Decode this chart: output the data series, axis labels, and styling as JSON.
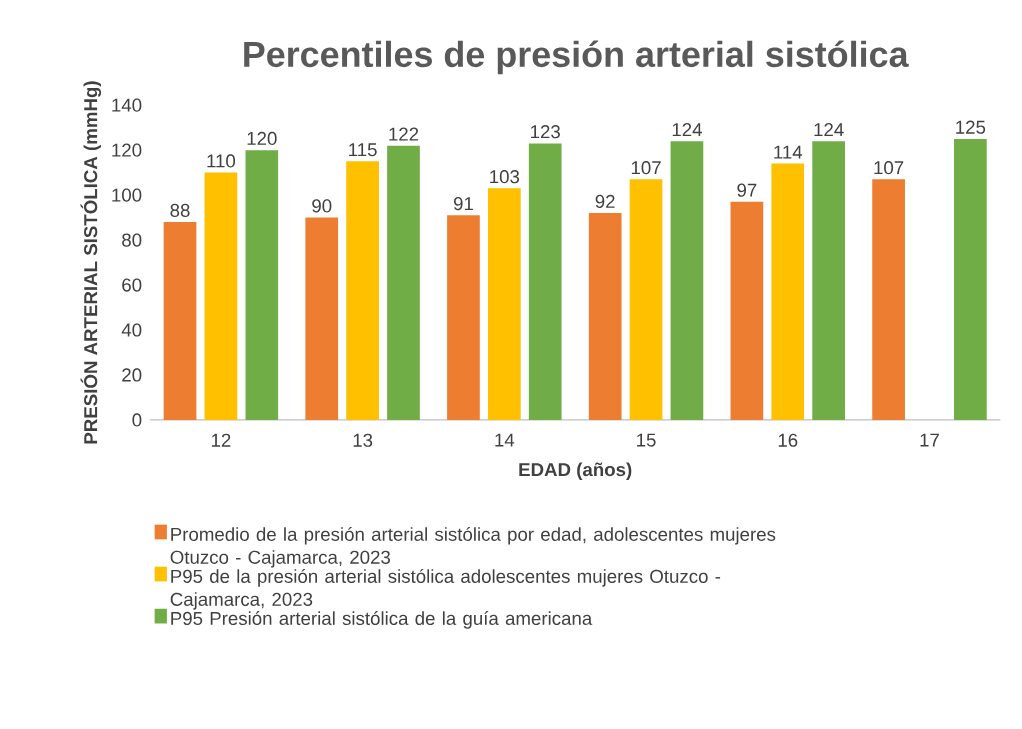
{
  "chart_data": {
    "type": "bar",
    "title": "Percentiles de presión arterial sistólica",
    "xlabel": "EDAD (años)",
    "ylabel": "PRESIÓN ARTERIAL SISTÓLICA (mmHg)",
    "categories": [
      "12",
      "13",
      "14",
      "15",
      "16",
      "17"
    ],
    "series": [
      {
        "name": "Promedio de la presión arterial sistólica por edad, adolescentes mujeres Otuzco - Cajamarca, 2023",
        "color": "#ed7d31",
        "values": [
          88,
          90,
          91,
          92,
          97,
          107
        ]
      },
      {
        "name": "P95 de la presión arterial sistólica adolescentes mujeres Otuzco - Cajamarca, 2023",
        "color": "#ffc000",
        "values": [
          110,
          115,
          103,
          107,
          114,
          null
        ]
      },
      {
        "name": "P95  Presión arterial sistólica de la guía americana",
        "color": "#70ad47",
        "values": [
          120,
          122,
          123,
          124,
          124,
          125
        ]
      }
    ],
    "ylim": [
      0,
      140
    ],
    "yticks": [
      0,
      20,
      40,
      60,
      80,
      100,
      120,
      140
    ],
    "data_labels": true,
    "grid": false,
    "legend": "bottom"
  }
}
